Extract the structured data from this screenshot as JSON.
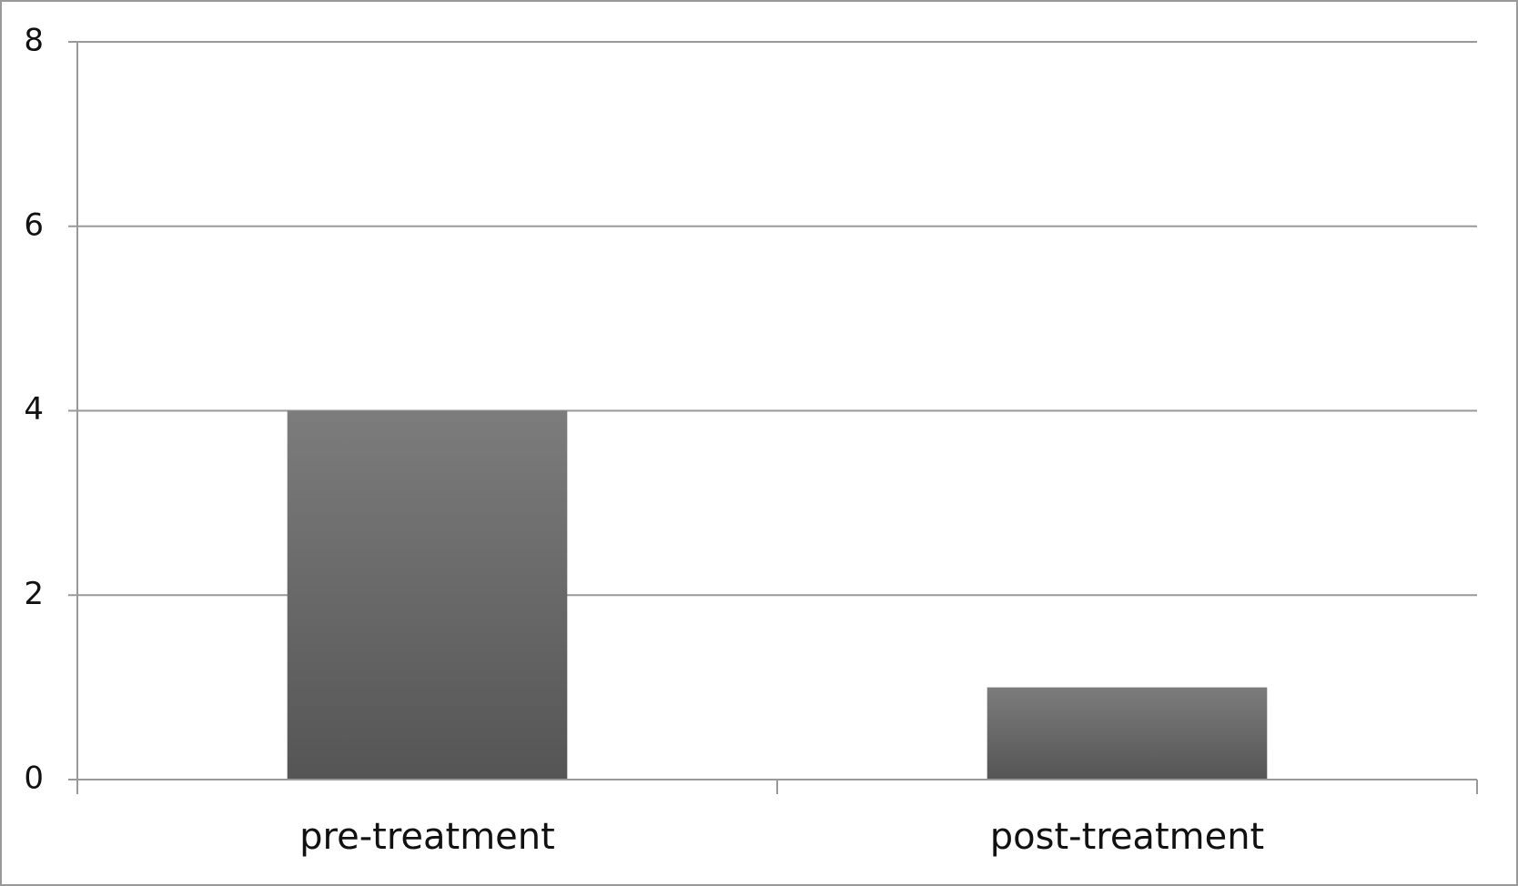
{
  "chart_data": {
    "type": "bar",
    "categories": [
      "pre-treatment",
      "post-treatment"
    ],
    "values": [
      4,
      1
    ],
    "gradient": [
      "#7c7c7c",
      "#555555"
    ],
    "ylim": [
      0,
      8
    ],
    "yticks": [
      0,
      2,
      4,
      6,
      8
    ],
    "grid": true
  }
}
